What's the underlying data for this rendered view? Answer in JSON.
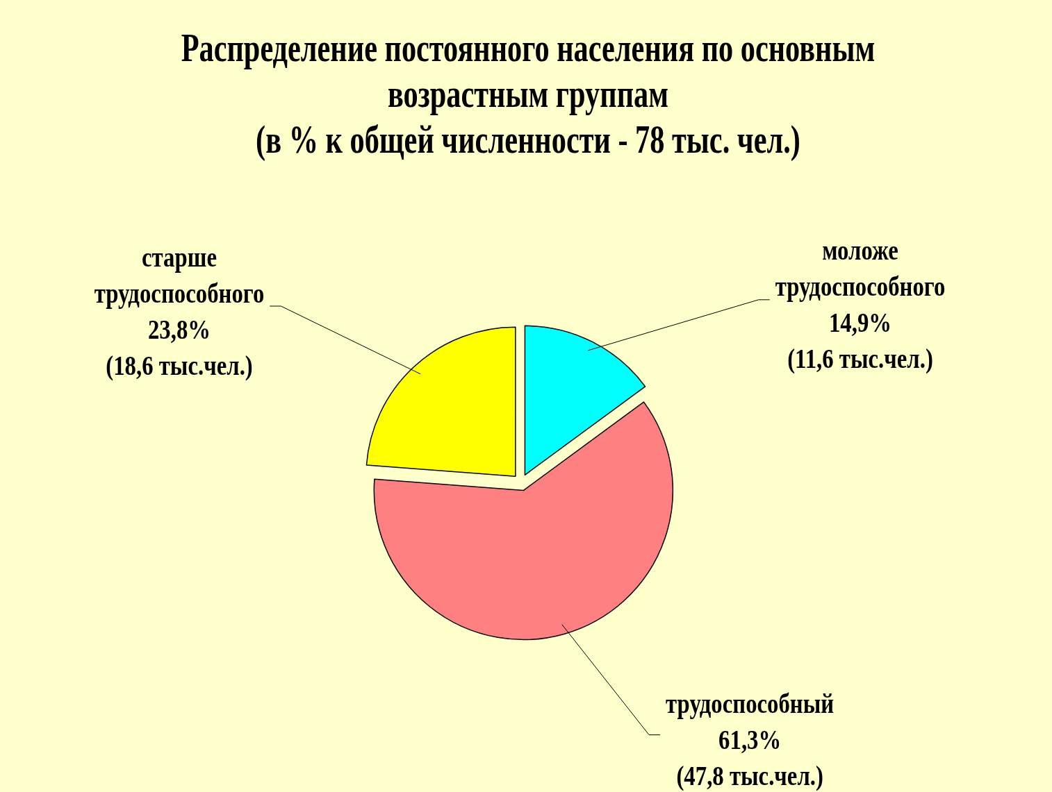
{
  "chart_data": {
    "type": "pie",
    "title": "Распределение постоянного населения по основным возрастным группам",
    "subtitle": "(в % к общей численности - 78 тыс. чел.)",
    "categories": [
      "моложе трудоспособного",
      "трудоспособный",
      "старше трудоспособного"
    ],
    "values": [
      14.9,
      61.3,
      23.8
    ],
    "colors": [
      "#00ffff",
      "#ff8080",
      "#ffff00"
    ],
    "value_labels": [
      "14,9%\n(11,6 тыс.чел.)",
      "61,3%\n(47,8 тыс.чел.)",
      "23,8%\n(18,6 тыс.чел.)"
    ]
  }
}
